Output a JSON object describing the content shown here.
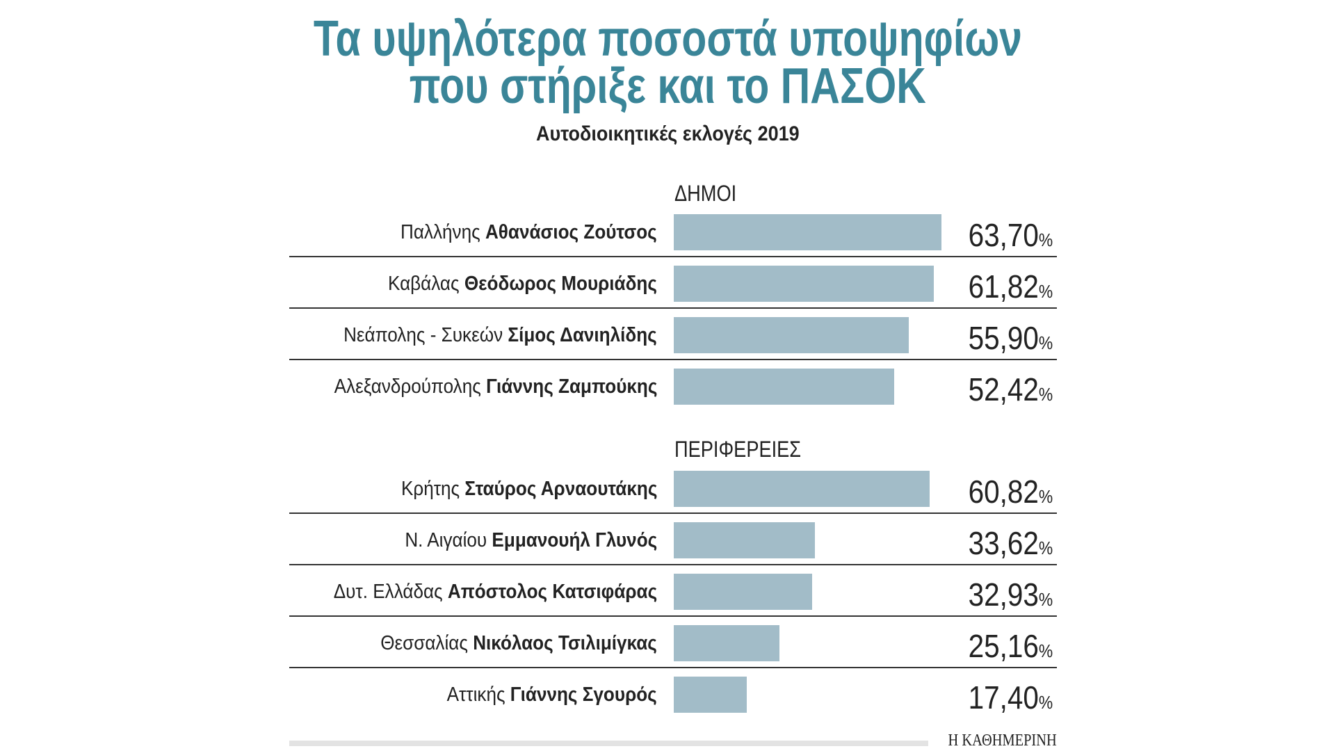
{
  "chart_data": {
    "type": "bar",
    "orientation": "horizontal",
    "title": "Τα υψηλότερα ποσοστά υποψηφίων που στήριξε και το ΠΑΣΟΚ",
    "title_lines": [
      "Τα υψηλότερα ποσοστά υποψηφίων",
      "που στήριξε και το ΠΑΣΟΚ"
    ],
    "subtitle": "Αυτοδιοικητικές εκλογές 2019",
    "unit": "%",
    "bar_color": "#a2bcc8",
    "title_color": "#3a8598",
    "groups": [
      {
        "label": "ΔΗΜΟΙ",
        "rows": [
          {
            "place": "Παλλήνης",
            "candidate": "Αθανάσιος Ζούτσος",
            "value": 63.7,
            "label": "63,70"
          },
          {
            "place": "Καβάλας",
            "candidate": "Θεόδωρος Μουριάδης",
            "value": 61.82,
            "label": "61,82"
          },
          {
            "place": "Νεάπολης - Συκεών",
            "candidate": "Σίμος Δανιηλίδης",
            "value": 55.9,
            "label": "55,90"
          },
          {
            "place": "Αλεξανδρούπολης",
            "candidate": "Γιάννης Ζαμπούκης",
            "value": 52.42,
            "label": "52,42"
          }
        ]
      },
      {
        "label": "ΠΕΡΙΦΕΡΕΙΕΣ",
        "rows": [
          {
            "place": "Κρήτης",
            "candidate": "Σταύρος Αρναουτάκης",
            "value": 60.82,
            "label": "60,82"
          },
          {
            "place": "Ν. Αιγαίου",
            "candidate": "Εμμανουήλ Γλυνός",
            "value": 33.62,
            "label": "33,62"
          },
          {
            "place": "Δυτ. Ελλάδας",
            "candidate": "Απόστολος Κατσιφάρας",
            "value": 32.93,
            "label": "32,93"
          },
          {
            "place": "Θεσσαλίας",
            "candidate": "Νικόλαος Τσιλιμίγκας",
            "value": 25.16,
            "label": "25,16"
          },
          {
            "place": "Αττικής",
            "candidate": "Γιάννης Σγουρός",
            "value": 17.4,
            "label": "17,40"
          }
        ]
      }
    ]
  },
  "footer": {
    "logo": "Η ΚΑΘΗΜΕΡΙΝΗ"
  }
}
